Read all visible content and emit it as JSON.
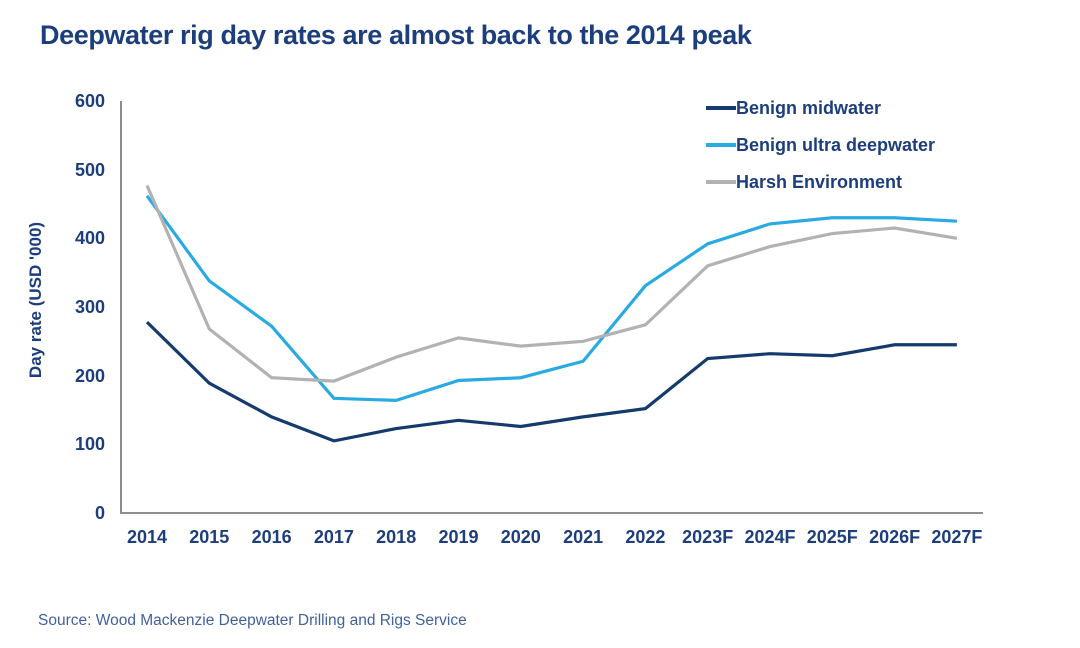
{
  "title": "Deepwater rig day rates are almost back to the 2014 peak",
  "source": "Source: Wood Mackenzie Deepwater Drilling and Rigs Service",
  "colors": {
    "title_text": "#1d3e7c",
    "axis_text": "#1d3e7c",
    "axis_line": "#7f7f7f",
    "navy": "#153a6e",
    "cyan": "#29abe2",
    "gray": "#b2b2b2",
    "source_text": "#41619f"
  },
  "chart_data": {
    "type": "line",
    "title": "Deepwater rig day rates are almost back to the 2014 peak",
    "xlabel": "",
    "ylabel": "Day rate (USD '000)",
    "ylim": [
      0,
      600
    ],
    "yticks": [
      0,
      100,
      200,
      300,
      400,
      500,
      600
    ],
    "grid": false,
    "legend_position": "top-right",
    "categories": [
      "2014",
      "2015",
      "2016",
      "2017",
      "2018",
      "2019",
      "2020",
      "2021",
      "2022",
      "2023F",
      "2024F",
      "2025F",
      "2026F",
      "2027F"
    ],
    "series": [
      {
        "name": "Benign midwater",
        "color_key": "navy",
        "values": [
          278,
          189,
          140,
          105,
          123,
          135,
          126,
          140,
          152,
          225,
          232,
          229,
          245,
          245
        ]
      },
      {
        "name": "Benign ultra deepwater",
        "color_key": "cyan",
        "values": [
          462,
          338,
          272,
          167,
          164,
          193,
          197,
          221,
          331,
          392,
          421,
          430,
          430,
          425
        ]
      },
      {
        "name": "Harsh Environment",
        "color_key": "gray",
        "values": [
          477,
          268,
          197,
          192,
          227,
          255,
          243,
          250,
          274,
          360,
          388,
          407,
          415,
          400
        ]
      }
    ]
  }
}
